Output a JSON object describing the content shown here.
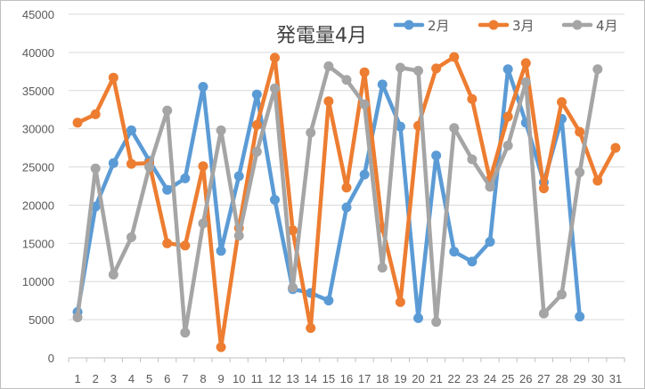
{
  "chart_data": {
    "type": "line",
    "title": "発電量4月",
    "xlabel": "",
    "ylabel": "",
    "ylim": [
      0,
      45000
    ],
    "yticks": [
      0,
      5000,
      10000,
      15000,
      20000,
      25000,
      30000,
      35000,
      40000,
      45000
    ],
    "categories": [
      "1",
      "2",
      "3",
      "4",
      "5",
      "6",
      "7",
      "8",
      "9",
      "10",
      "11",
      "12",
      "13",
      "14",
      "15",
      "16",
      "17",
      "18",
      "19",
      "20",
      "21",
      "22",
      "23",
      "24",
      "25",
      "26",
      "27",
      "28",
      "29",
      "30",
      "31"
    ],
    "grid": "horizontal",
    "legend_position": "top-right",
    "series": [
      {
        "name": "2月",
        "color": "#5b9bd5",
        "values": [
          6000,
          19800,
          25500,
          29800,
          25800,
          22000,
          23500,
          35500,
          14000,
          23800,
          34500,
          20700,
          9000,
          8500,
          7500,
          19700,
          24000,
          35800,
          30300,
          5200,
          26500,
          13900,
          12600,
          15200,
          37800,
          30800,
          23000,
          31300,
          5400,
          null,
          null
        ]
      },
      {
        "name": "3月",
        "color": "#ed7d31",
        "values": [
          30800,
          31900,
          36700,
          25400,
          25500,
          15000,
          14700,
          25100,
          1400,
          17000,
          30500,
          39300,
          16700,
          3900,
          33600,
          22300,
          37400,
          17000,
          7300,
          30400,
          37900,
          39400,
          33900,
          23300,
          31600,
          38600,
          22200,
          33500,
          29600,
          23200,
          27500
        ]
      },
      {
        "name": "4月",
        "color": "#a5a5a5",
        "values": [
          5300,
          24800,
          10900,
          15800,
          25000,
          32400,
          3300,
          17600,
          29800,
          16000,
          27000,
          35300,
          9200,
          29500,
          38200,
          36400,
          33200,
          11800,
          38000,
          37600,
          4700,
          30100,
          26000,
          22400,
          27800,
          36100,
          5800,
          8300,
          24300,
          37800,
          null
        ]
      }
    ]
  }
}
